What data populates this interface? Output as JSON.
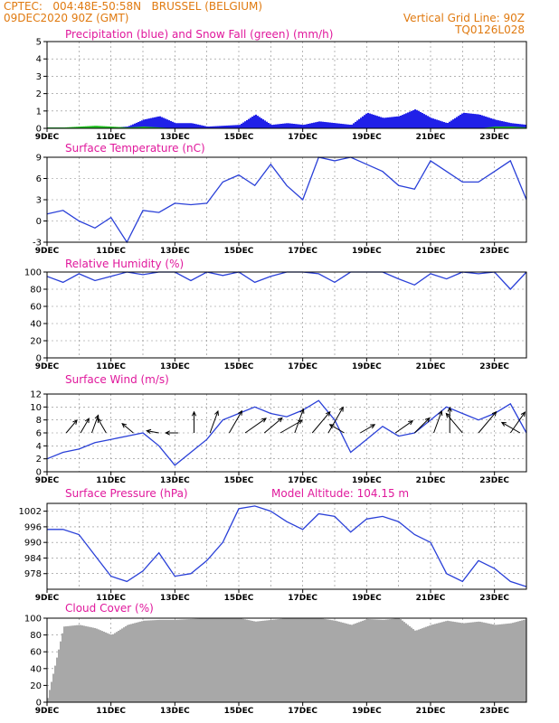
{
  "header": {
    "line1_left": "CPTEC:   004:48E-50:58N   BRUSSEL (BELGIUM)",
    "line2_left": "09DEC2020 90Z (GMT)",
    "line1_right": "Vertical Grid Line: 90Z",
    "line2_right": "TQ0126L028"
  },
  "colors": {
    "header": "#e07a10",
    "title": "#e0189c",
    "line": "#2a40d8",
    "rain": "#2020e8",
    "snow": "#20c020",
    "cloud": "#a8a8a8",
    "arrow": "#000000"
  },
  "x_tick_labels": [
    "9DEC",
    "11DEC",
    "13DEC",
    "15DEC",
    "17DEC",
    "19DEC",
    "21DEC",
    "23DEC"
  ],
  "chart_data": [
    {
      "type": "bar",
      "title": "Precipitation (blue) and Snow Fall (green) (mm/h)",
      "ylim": [
        0,
        5
      ],
      "yticks": [
        "5",
        "4",
        "3",
        "2",
        "1",
        "0"
      ],
      "x": [
        0,
        0.5,
        1,
        1.5,
        2,
        2.5,
        3,
        3.5,
        4,
        4.5,
        5,
        5.5,
        6,
        6.5,
        7,
        7.5,
        8,
        8.5,
        9,
        9.5,
        10,
        10.5,
        11,
        11.5,
        12,
        12.5,
        13,
        13.5,
        14,
        14.5,
        15
      ],
      "series": [
        {
          "values": [
            0.05,
            0.05,
            0.05,
            0.1,
            0.05,
            0.1,
            0.5,
            0.7,
            0.3,
            0.3,
            0.1,
            0.15,
            0.2,
            0.8,
            0.2,
            0.3,
            0.2,
            0.4,
            0.3,
            0.2,
            0.9,
            0.6,
            0.7,
            1.1,
            0.6,
            0.3,
            0.9,
            0.8,
            0.5,
            0.3,
            0.2
          ]
        },
        {
          "values": [
            0.05,
            0.05,
            0.1,
            0.15,
            0.1,
            0.05,
            0.1,
            0.05,
            0,
            0,
            0,
            0,
            0,
            0,
            0,
            0,
            0,
            0,
            0,
            0,
            0,
            0,
            0,
            0,
            0,
            0,
            0,
            0,
            0.1,
            0.1,
            0.05
          ]
        }
      ]
    },
    {
      "type": "line",
      "title": "Surface Temperature (nC)",
      "ylim": [
        -3,
        9
      ],
      "yticks": [
        "9",
        "6",
        "3",
        "0",
        "-3"
      ],
      "x": [
        0,
        0.5,
        1,
        1.5,
        2,
        2.5,
        3,
        3.5,
        4,
        4.5,
        5,
        5.5,
        6,
        6.5,
        7,
        7.5,
        8,
        8.5,
        9,
        9.5,
        10,
        10.5,
        11,
        11.5,
        12,
        12.5,
        13,
        13.5,
        14,
        14.5,
        15
      ],
      "values": [
        1,
        1.5,
        0,
        -1,
        0.5,
        -3,
        1.5,
        1.2,
        2.5,
        2.3,
        2.5,
        5.5,
        6.5,
        5,
        8,
        5,
        3,
        9,
        8.5,
        9,
        8,
        7,
        5,
        4.5,
        8.5,
        7,
        5.5,
        5.5,
        7,
        8.5,
        3
      ]
    },
    {
      "type": "line",
      "title": "Relative Humidity (%)",
      "ylim": [
        0,
        100
      ],
      "yticks": [
        "100",
        "80",
        "60",
        "40",
        "20",
        "0"
      ],
      "x": [
        0,
        0.5,
        1,
        1.5,
        2,
        2.5,
        3,
        3.5,
        4,
        4.5,
        5,
        5.5,
        6,
        6.5,
        7,
        7.5,
        8,
        8.5,
        9,
        9.5,
        10,
        10.5,
        11,
        11.5,
        12,
        12.5,
        13,
        13.5,
        14,
        14.5,
        15
      ],
      "values": [
        95,
        88,
        98,
        90,
        95,
        100,
        97,
        100,
        100,
        90,
        100,
        96,
        100,
        88,
        95,
        100,
        100,
        98,
        88,
        100,
        100,
        100,
        92,
        85,
        98,
        92,
        100,
        98,
        100,
        80,
        100
      ]
    },
    {
      "type": "line",
      "title": "Surface Wind (m/s)",
      "ylim": [
        0,
        12
      ],
      "yticks": [
        "12",
        "10",
        "8",
        "6",
        "4",
        "2",
        "0"
      ],
      "x": [
        0,
        0.5,
        1,
        1.5,
        2,
        2.5,
        3,
        3.5,
        4,
        4.5,
        5,
        5.5,
        6,
        6.5,
        7,
        7.5,
        8,
        8.5,
        9,
        9.5,
        10,
        10.5,
        11,
        11.5,
        12,
        12.5,
        13,
        13.5,
        14,
        14.5,
        15
      ],
      "values": [
        2,
        3,
        3.5,
        4.5,
        5,
        5.5,
        6,
        4,
        1,
        3,
        5,
        8,
        9,
        10,
        9,
        8.5,
        9.5,
        11,
        8,
        3,
        5,
        7,
        5.5,
        6,
        8,
        10,
        9,
        8,
        9,
        10.5,
        6
      ]
    },
    {
      "type": "line",
      "title": "Surface Pressure (hPa)",
      "annotation": "Model Altitude: 104.15 m",
      "ylim": [
        972,
        1005
      ],
      "yticks": [
        "1002",
        "996",
        "990",
        "984",
        "978"
      ],
      "x": [
        0,
        0.5,
        1,
        1.5,
        2,
        2.5,
        3,
        3.5,
        4,
        4.5,
        5,
        5.5,
        6,
        6.5,
        7,
        7.5,
        8,
        8.5,
        9,
        9.5,
        10,
        10.5,
        11,
        11.5,
        12,
        12.5,
        13,
        13.5,
        14,
        14.5,
        15
      ],
      "values": [
        995,
        995,
        993,
        985,
        977,
        975,
        979,
        986,
        977,
        978,
        983,
        990,
        1003,
        1004,
        1002,
        998,
        995,
        1001,
        1000,
        994,
        999,
        1000,
        998,
        993,
        990,
        978,
        975,
        983,
        980,
        975,
        973
      ]
    },
    {
      "type": "bar",
      "title": "Cloud Cover (%)",
      "ylim": [
        0,
        100
      ],
      "yticks": [
        "100",
        "80",
        "60",
        "40",
        "20",
        "0"
      ],
      "x": [
        0,
        0.5,
        1,
        1.5,
        2,
        2.5,
        3,
        3.5,
        4,
        4.5,
        5,
        5.5,
        6,
        6.5,
        7,
        7.5,
        8,
        8.5,
        9,
        9.5,
        10,
        10.5,
        11,
        11.5,
        12,
        12.5,
        13,
        13.5,
        14,
        14.5,
        15
      ],
      "values": [
        5,
        90,
        92,
        88,
        80,
        92,
        97,
        98,
        98,
        99,
        100,
        100,
        100,
        96,
        98,
        100,
        100,
        100,
        97,
        92,
        99,
        98,
        100,
        85,
        92,
        97,
        94,
        96,
        92,
        94,
        99
      ]
    }
  ],
  "wind_arrows": [
    {
      "day": 0.6,
      "deg": 40,
      "speed": 6
    },
    {
      "day": 1.05,
      "deg": 30,
      "speed": 6
    },
    {
      "day": 1.4,
      "deg": 20,
      "speed": 7
    },
    {
      "day": 1.85,
      "deg": 330,
      "speed": 6
    },
    {
      "day": 2.7,
      "deg": 310,
      "speed": 5
    },
    {
      "day": 3.5,
      "deg": 280,
      "speed": 4
    },
    {
      "day": 4.1,
      "deg": 270,
      "speed": 4
    },
    {
      "day": 4.6,
      "deg": 0,
      "speed": 8
    },
    {
      "day": 5.1,
      "deg": 20,
      "speed": 9
    },
    {
      "day": 5.7,
      "deg": 30,
      "speed": 10
    },
    {
      "day": 6.2,
      "deg": 55,
      "speed": 10
    },
    {
      "day": 6.8,
      "deg": 50,
      "speed": 9
    },
    {
      "day": 7.3,
      "deg": 60,
      "speed": 10
    },
    {
      "day": 7.75,
      "deg": 20,
      "speed": 10
    },
    {
      "day": 8.3,
      "deg": 40,
      "speed": 11
    },
    {
      "day": 8.8,
      "deg": 30,
      "speed": 12
    },
    {
      "day": 9.3,
      "deg": 300,
      "speed": 6
    },
    {
      "day": 9.8,
      "deg": 60,
      "speed": 6
    },
    {
      "day": 10.9,
      "deg": 55,
      "speed": 8
    },
    {
      "day": 11.5,
      "deg": 45,
      "speed": 8
    },
    {
      "day": 12.1,
      "deg": 20,
      "speed": 9
    },
    {
      "day": 12.6,
      "deg": 0,
      "speed": 10
    },
    {
      "day": 13.0,
      "deg": 320,
      "speed": 10
    },
    {
      "day": 13.5,
      "deg": 40,
      "speed": 11
    },
    {
      "day": 14.5,
      "deg": 35,
      "speed": 10
    },
    {
      "day": 14.8,
      "deg": 300,
      "speed": 8
    }
  ]
}
